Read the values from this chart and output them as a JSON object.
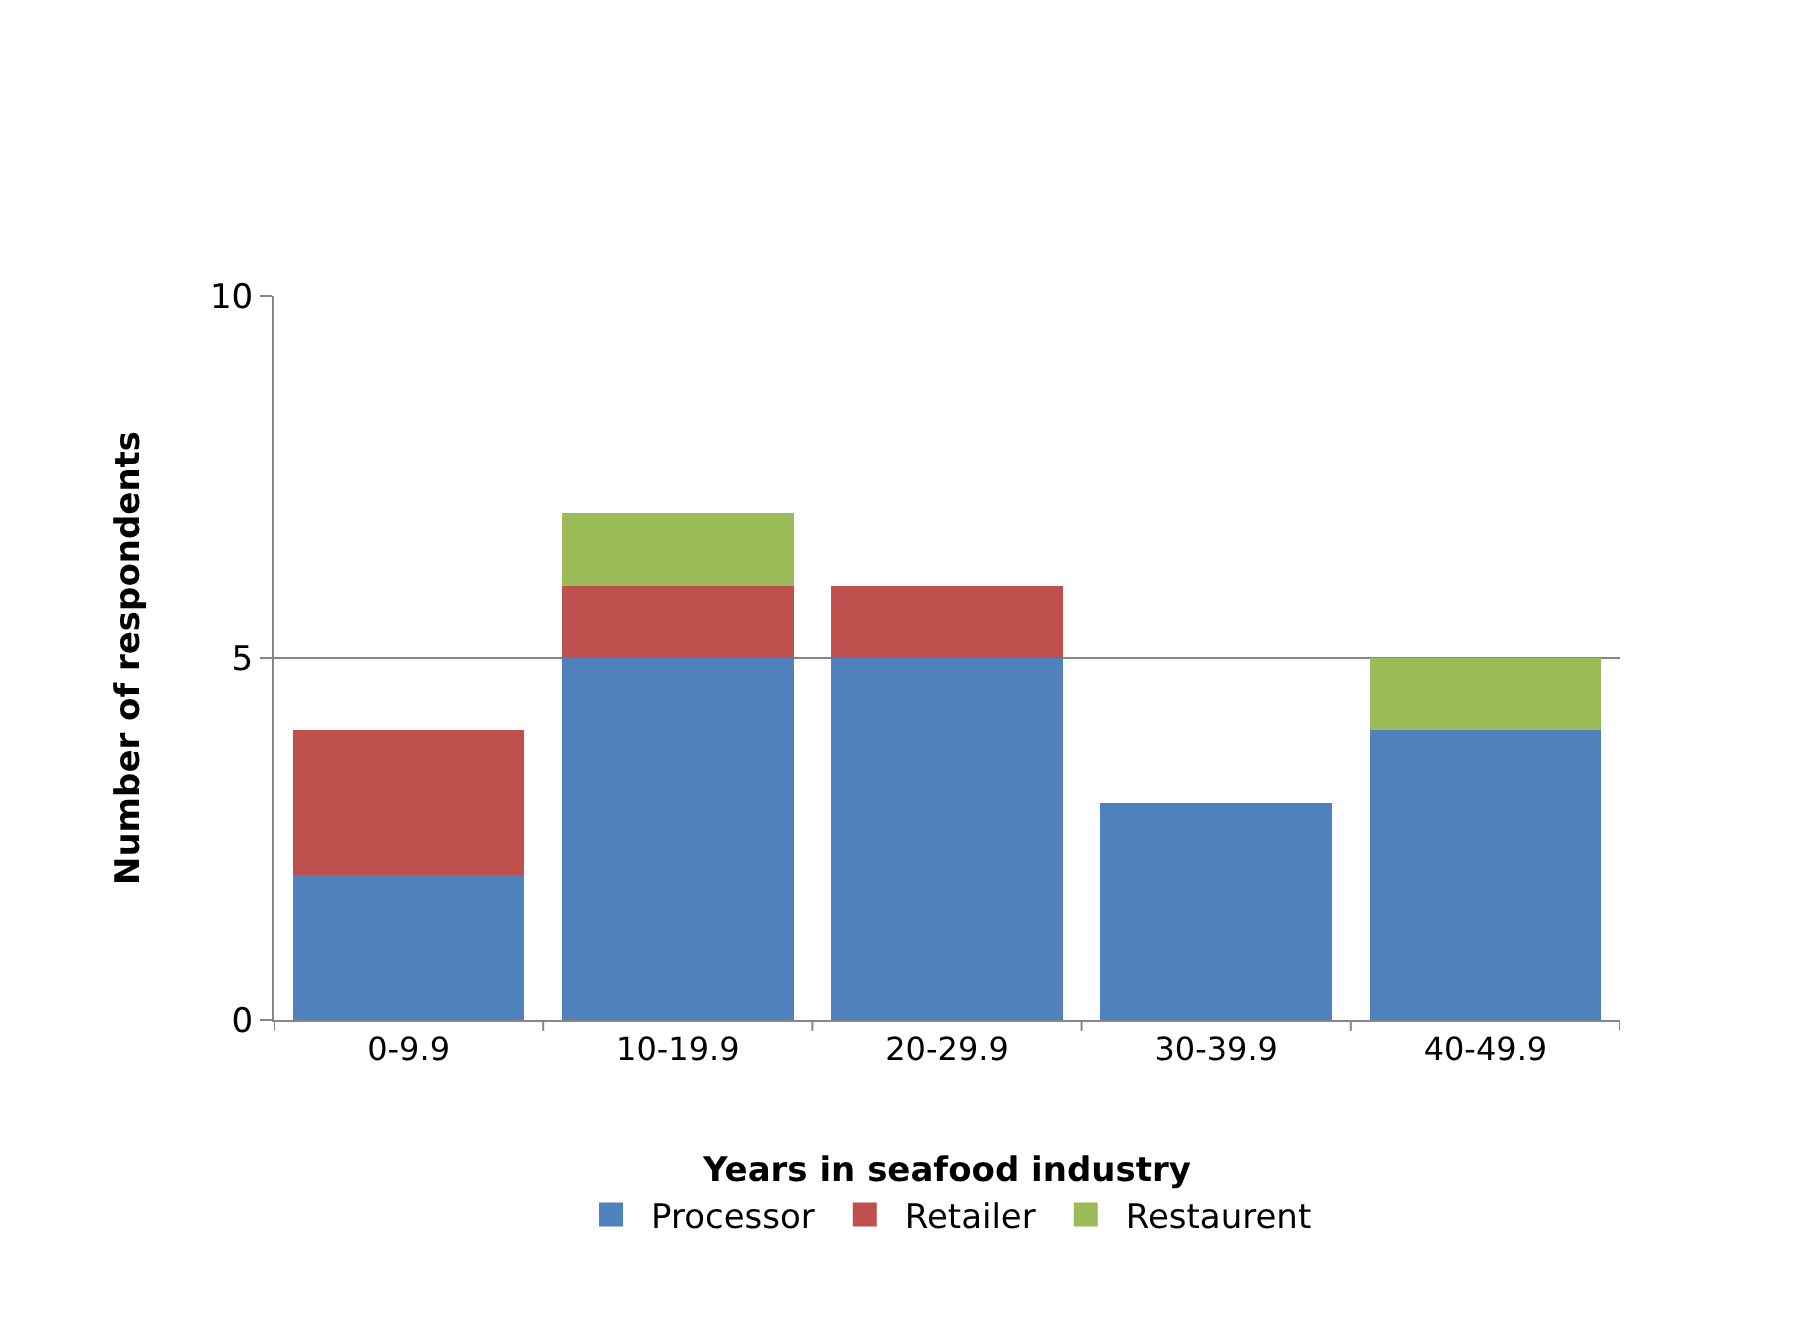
{
  "chart_data": {
    "type": "bar",
    "stacked": true,
    "xlabel": "Years in seafood industry",
    "ylabel": "Number of respondents",
    "categories": [
      "0-9.9",
      "10-19.9",
      "20-29.9",
      "30-39.9",
      "40-49.9"
    ],
    "series": [
      {
        "name": "Processor",
        "color": "#4f81bd",
        "values": [
          2,
          5,
          5,
          3,
          4
        ]
      },
      {
        "name": "Retailer",
        "color": "#c0504d",
        "values": [
          2,
          1,
          1,
          0,
          0
        ]
      },
      {
        "name": "Restaurent",
        "color": "#9bbb59",
        "values": [
          0,
          1,
          0,
          0,
          1
        ]
      }
    ],
    "ylim": [
      0,
      10
    ],
    "yticks": [
      0,
      5,
      10
    ],
    "grid": "y",
    "legend": "bottom"
  }
}
